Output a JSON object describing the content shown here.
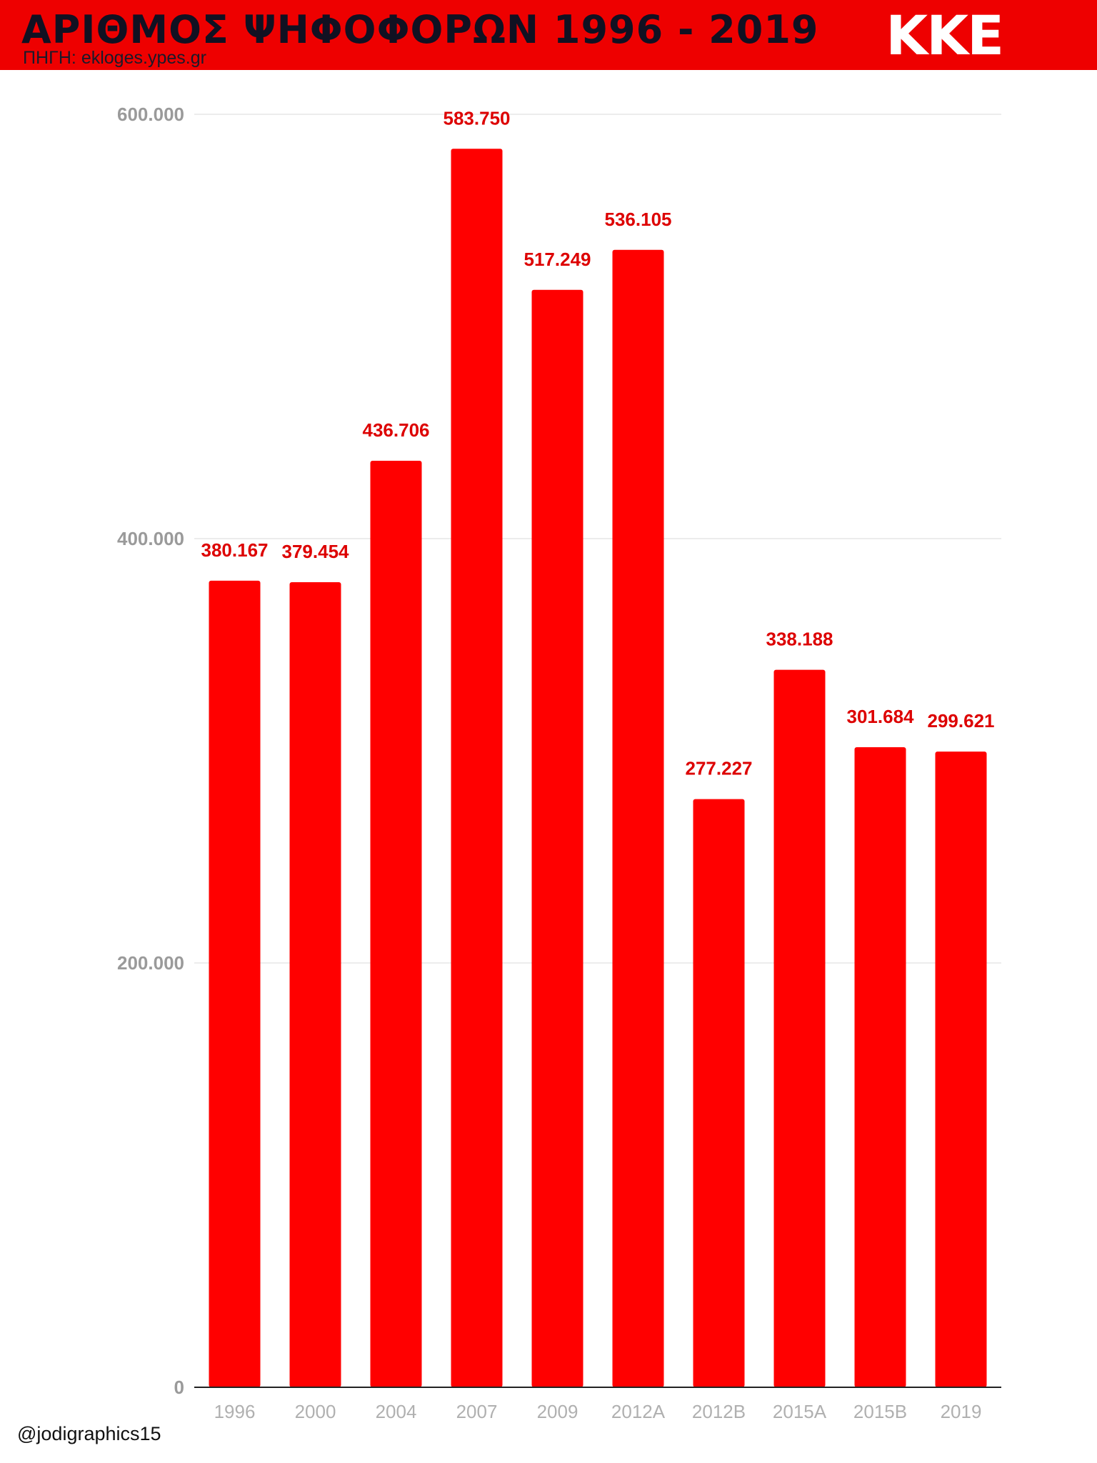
{
  "header": {
    "title": "ΑΡΙΘΜΟΣ ΨΗΦΟΦΟΡΩΝ 1996 - 2019",
    "source": "ΠΗΓΗ: ekloges.ypes.gr",
    "logo_text": "ΚΚΕ",
    "banner_color": "#ee0000"
  },
  "footer": {
    "credit": "@jodigraphics15"
  },
  "chart_data": {
    "type": "bar",
    "title": "ΑΡΙΘΜΟΣ ΨΗΦΟΦΟΡΩΝ 1996 - 2019",
    "xlabel": "",
    "ylabel": "",
    "categories": [
      "1996",
      "2000",
      "2004",
      "2007",
      "2009",
      "2012A",
      "2012B",
      "2015A",
      "2015B",
      "2019"
    ],
    "values": [
      380167,
      379454,
      436706,
      583750,
      517249,
      536105,
      277227,
      338188,
      301684,
      299621
    ],
    "value_labels": [
      "380.167",
      "379.454",
      "436.706",
      "583.750",
      "517.249",
      "536.105",
      "277.227",
      "338.188",
      "301.684",
      "299.621"
    ],
    "ylim": [
      0,
      600000
    ],
    "yticks": [
      0,
      200000,
      400000,
      600000
    ],
    "ytick_labels": [
      "0",
      "200.000",
      "400.000",
      "600.000"
    ],
    "grid": true,
    "bar_color": "#ff0000",
    "label_color": "#dd0000"
  }
}
